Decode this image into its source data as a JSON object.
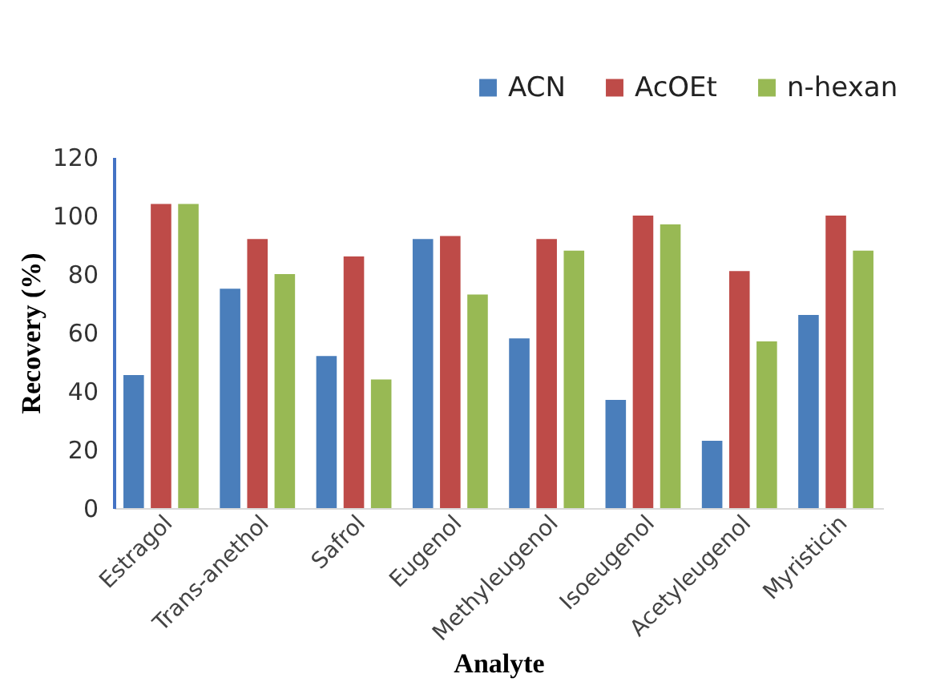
{
  "chart_data": {
    "type": "bar",
    "xlabel": "Analyte",
    "ylabel": "Recovery (%)",
    "categories": [
      "Estragol",
      "Trans-anethol",
      "Safrol",
      "Eugenol",
      "Methyleugenol",
      "Isoeugenol",
      "Acetyleugenol",
      "Myristicin"
    ],
    "series": [
      {
        "name": "ACN",
        "color": "#4a7ebb",
        "values": [
          45.5,
          75,
          52,
          92,
          58,
          37,
          23,
          66
        ]
      },
      {
        "name": "AcOEt",
        "color": "#be4b48",
        "values": [
          104,
          92,
          86,
          93,
          92,
          100,
          81,
          100
        ]
      },
      {
        "name": "n-hexan",
        "color": "#98b954",
        "values": [
          104,
          80,
          44,
          73,
          88,
          97,
          57,
          88
        ]
      }
    ],
    "ylim": [
      0,
      120
    ],
    "yticks": [
      0,
      20,
      40,
      60,
      80,
      100,
      120
    ],
    "grid": false,
    "legend": "top right"
  }
}
